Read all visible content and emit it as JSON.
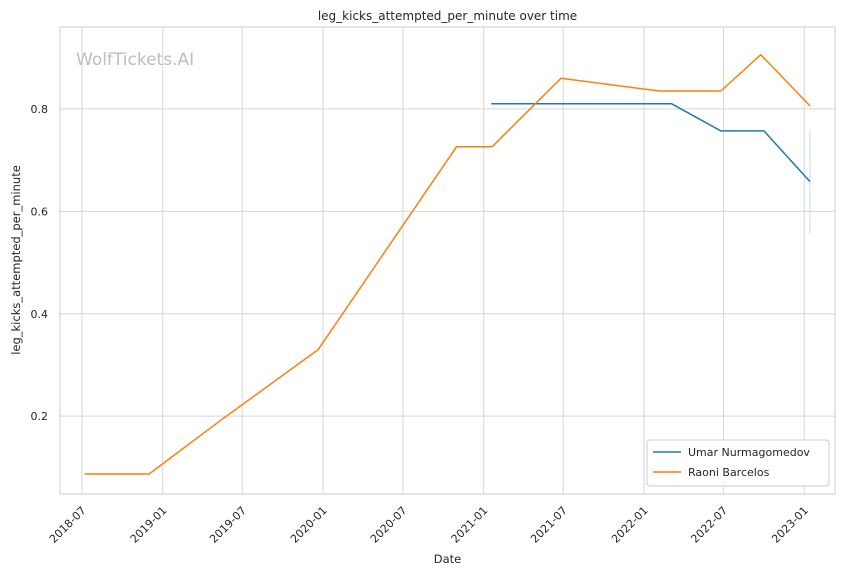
{
  "chart_data": {
    "type": "line",
    "title": "leg_kicks_attempted_per_minute over time",
    "xlabel": "Date",
    "ylabel": "leg_kicks_attempted_per_minute",
    "watermark": "WolfTickets.AI",
    "x_ticks": [
      {
        "date": "2018-07-01",
        "label": "2018-07"
      },
      {
        "date": "2019-01-01",
        "label": "2019-01"
      },
      {
        "date": "2019-07-01",
        "label": "2019-07"
      },
      {
        "date": "2020-01-01",
        "label": "2020-01"
      },
      {
        "date": "2020-07-01",
        "label": "2020-07"
      },
      {
        "date": "2021-01-01",
        "label": "2021-01"
      },
      {
        "date": "2021-07-01",
        "label": "2021-07"
      },
      {
        "date": "2022-01-01",
        "label": "2022-01"
      },
      {
        "date": "2022-07-01",
        "label": "2022-07"
      },
      {
        "date": "2023-01-01",
        "label": "2023-01"
      }
    ],
    "y_ticks": [
      0.2,
      0.4,
      0.6,
      0.8
    ],
    "xlim": [
      "2018-05-12",
      "2023-03-12"
    ],
    "ylim": [
      0.048,
      0.96
    ],
    "grid": true,
    "legend_position": "bottom-right",
    "series": [
      {
        "name": "Umar Nurmagomedov",
        "color": "#1f77b4",
        "points": [
          {
            "x": "2021-01-18",
            "y": 0.81
          },
          {
            "x": "2022-03-05",
            "y": 0.81
          },
          {
            "x": "2022-06-25",
            "y": 0.757
          },
          {
            "x": "2022-10-01",
            "y": 0.757
          },
          {
            "x": "2023-01-14",
            "y": 0.658
          }
        ],
        "error_band": {
          "x": "2023-01-14",
          "low": 0.555,
          "high": 0.76
        }
      },
      {
        "name": "Raoni Barcelos",
        "color": "#ff7f0e",
        "points": [
          {
            "x": "2018-07-07",
            "y": 0.087
          },
          {
            "x": "2018-12-01",
            "y": 0.087
          },
          {
            "x": "2019-05-18",
            "y": 0.195
          },
          {
            "x": "2019-12-21",
            "y": 0.33
          },
          {
            "x": "2020-10-31",
            "y": 0.726
          },
          {
            "x": "2021-01-20",
            "y": 0.726
          },
          {
            "x": "2021-06-26",
            "y": 0.86
          },
          {
            "x": "2022-02-05",
            "y": 0.835
          },
          {
            "x": "2022-06-25",
            "y": 0.835
          },
          {
            "x": "2022-09-24",
            "y": 0.906
          },
          {
            "x": "2023-01-14",
            "y": 0.806
          }
        ]
      }
    ]
  }
}
